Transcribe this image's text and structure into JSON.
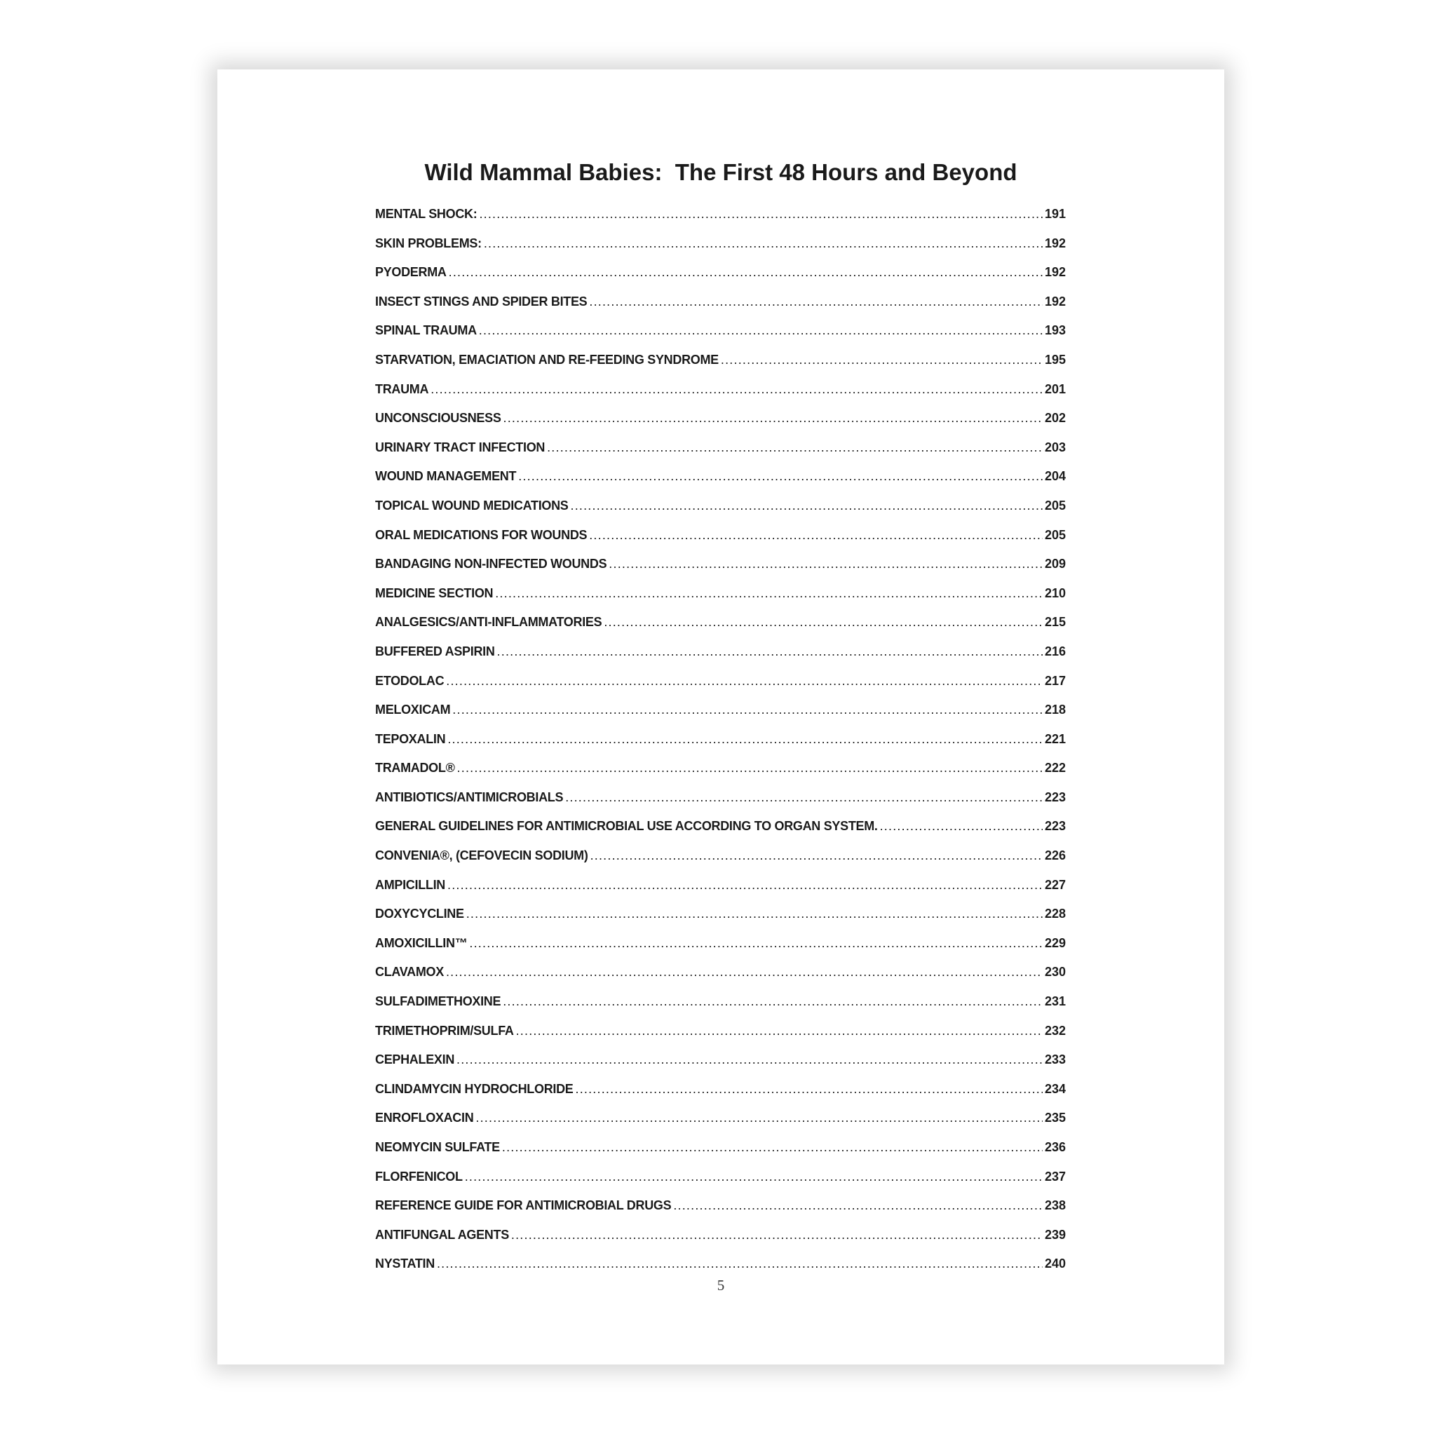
{
  "title": "Wild Mammal Babies:  The First 48 Hours and Beyond",
  "entries": [
    {
      "label": "MENTAL SHOCK:",
      "page": "191"
    },
    {
      "label": "SKIN PROBLEMS:",
      "page": "192"
    },
    {
      "label": "PYODERMA",
      "page": "192"
    },
    {
      "label": "INSECT STINGS AND SPIDER BITES",
      "page": "192"
    },
    {
      "label": "SPINAL TRAUMA",
      "page": "193"
    },
    {
      "label": "STARVATION, EMACIATION AND RE-FEEDING SYNDROME",
      "page": "195"
    },
    {
      "label": "TRAUMA",
      "page": "201"
    },
    {
      "label": "UNCONSCIOUSNESS",
      "page": "202"
    },
    {
      "label": "URINARY TRACT INFECTION",
      "page": "203"
    },
    {
      "label": "WOUND MANAGEMENT",
      "page": "204"
    },
    {
      "label": "TOPICAL WOUND MEDICATIONS",
      "page": "205"
    },
    {
      "label": "ORAL MEDICATIONS FOR WOUNDS",
      "page": "205"
    },
    {
      "label": "BANDAGING NON-INFECTED WOUNDS",
      "page": "209"
    },
    {
      "label": "MEDICINE SECTION",
      "page": "210"
    },
    {
      "label": "ANALGESICS/ANTI-INFLAMMATORIES",
      "page": "215"
    },
    {
      "label": "BUFFERED ASPIRIN",
      "page": "216"
    },
    {
      "label": "ETODOLAC",
      "page": "217"
    },
    {
      "label": "MELOXICAM",
      "page": "218"
    },
    {
      "label": "TEPOXALIN",
      "page": "221"
    },
    {
      "label": "TRAMADOL®",
      "page": "222"
    },
    {
      "label": "ANTIBIOTICS/ANTIMICROBIALS",
      "page": "223"
    },
    {
      "label": "GENERAL GUIDELINES FOR ANTIMICROBIAL USE ACCORDING TO ORGAN SYSTEM.",
      "page": "223"
    },
    {
      "label": "CONVENIA®, (CEFOVECIN SODIUM)",
      "page": "226"
    },
    {
      "label": "AMPICILLIN",
      "page": "227"
    },
    {
      "label": "DOXYCYCLINE",
      "page": "228"
    },
    {
      "label": "AMOXICILLIN™",
      "page": "229"
    },
    {
      "label": "CLAVAMOX",
      "page": "230"
    },
    {
      "label": "SULFADIMETHOXINE",
      "page": "231"
    },
    {
      "label": "TRIMETHOPRIM/SULFA",
      "page": "232"
    },
    {
      "label": "CEPHALEXIN",
      "page": "233"
    },
    {
      "label": "CLINDAMYCIN HYDROCHLORIDE",
      "page": "234"
    },
    {
      "label": "ENROFLOXACIN",
      "page": "235"
    },
    {
      "label": "NEOMYCIN SULFATE",
      "page": "236"
    },
    {
      "label": "FLORFENICOL",
      "page": "237"
    },
    {
      "label": "REFERENCE GUIDE FOR ANTIMICROBIAL DRUGS",
      "page": "238"
    },
    {
      "label": "ANTIFUNGAL AGENTS",
      "page": "239"
    },
    {
      "label": "NYSTATIN",
      "page": "240"
    }
  ],
  "page_number": "5"
}
